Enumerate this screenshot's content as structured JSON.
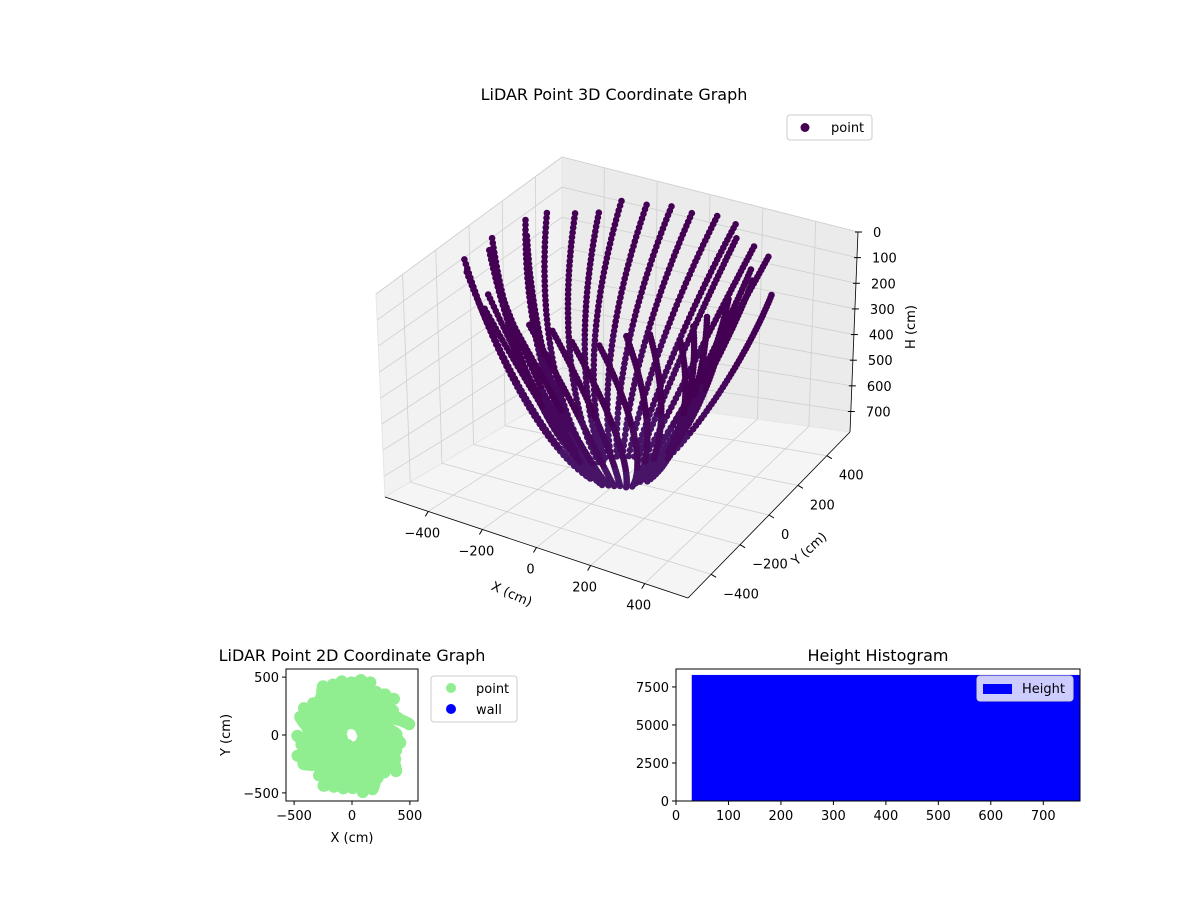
{
  "chart_data": [
    {
      "type": "scatter",
      "projection": "3d",
      "title": "LiDAR Point 3D Coordinate Graph",
      "xlabel": "X (cm)",
      "ylabel": "Y (cm)",
      "zlabel": "H (cm)",
      "xlim": [
        -560,
        560
      ],
      "ylim": [
        -560,
        560
      ],
      "zlim": [
        780,
        0
      ],
      "xticks": [
        "-400",
        "-200",
        "0",
        "200",
        "400"
      ],
      "yticks": [
        "-400",
        "-200",
        "0",
        "200",
        "400"
      ],
      "zticks": [
        "0",
        "100",
        "200",
        "300",
        "400",
        "500",
        "600",
        "700"
      ],
      "xtick_values": [
        -400,
        -200,
        0,
        200,
        400
      ],
      "ytick_values": [
        -400,
        -200,
        0,
        200,
        400
      ],
      "ztick_values": [
        0,
        100,
        200,
        300,
        400,
        500,
        600,
        700
      ],
      "legend": {
        "placement": "top-right",
        "entries": [
          {
            "label": "point",
            "color": "#440154"
          }
        ]
      },
      "series": [
        {
          "name": "point",
          "color": "#440154",
          "shape": "bowl-of-radial-scan-arcs",
          "h_range": [
            20,
            760
          ],
          "max_radius": 520,
          "azimuth_step_deg": 10
        }
      ],
      "grid": true
    },
    {
      "type": "scatter",
      "title": "LiDAR Point 2D Coordinate Graph",
      "xlabel": "X (cm)",
      "ylabel": "Y (cm)",
      "xlim": [
        -570,
        570
      ],
      "ylim": [
        -570,
        570
      ],
      "xticks": [
        "-500",
        "0",
        "500"
      ],
      "yticks": [
        "-500",
        "0",
        "500"
      ],
      "xtick_values": [
        -500,
        0,
        500
      ],
      "ytick_values": [
        -500,
        0,
        500
      ],
      "legend": {
        "placement": "outside-right",
        "entries": [
          {
            "label": "point",
            "color": "#90ee90"
          },
          {
            "label": "wall",
            "color": "#0000ff"
          }
        ]
      },
      "series": [
        {
          "name": "point",
          "color": "#90ee90"
        },
        {
          "name": "wall",
          "color": "#0000ff",
          "values": []
        }
      ]
    },
    {
      "type": "bar",
      "title": "Height Histogram",
      "xlim": [
        0,
        770
      ],
      "ylim": [
        0,
        8680
      ],
      "xticks": [
        "0",
        "100",
        "200",
        "300",
        "400",
        "500",
        "600",
        "700"
      ],
      "yticks": [
        "0",
        "2500",
        "5000",
        "7500"
      ],
      "xtick_values": [
        0,
        100,
        200,
        300,
        400,
        500,
        600,
        700
      ],
      "ytick_values": [
        0,
        2500,
        5000,
        7500
      ],
      "bins": [
        {
          "start": 30,
          "end": 770,
          "count": 8290
        }
      ],
      "color": "#0000ff",
      "legend": {
        "placement": "top-right",
        "entries": [
          {
            "label": "Height",
            "color": "#0000ff"
          }
        ]
      }
    }
  ]
}
